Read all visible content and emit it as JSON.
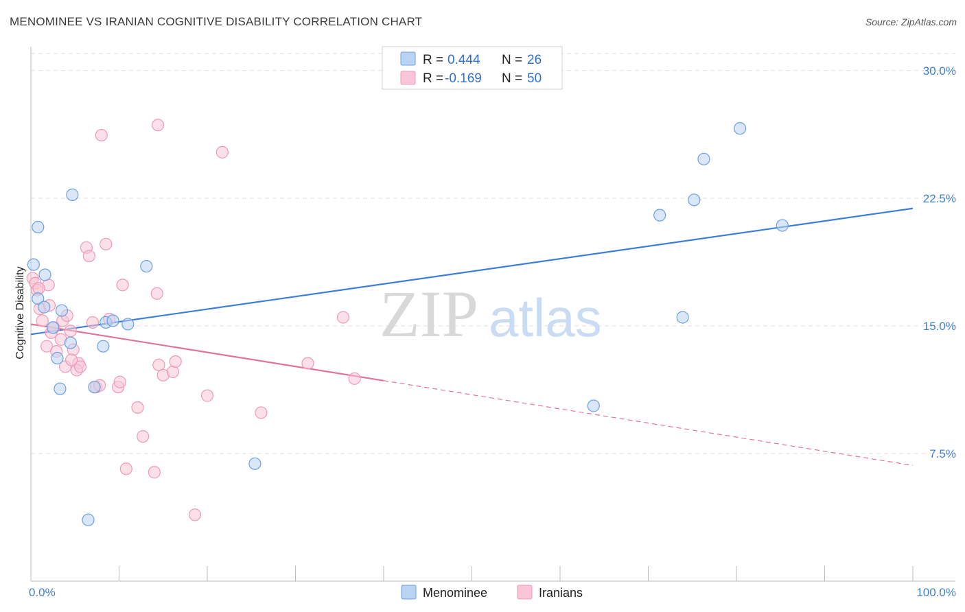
{
  "title": "MENOMINEE VS IRANIAN COGNITIVE DISABILITY CORRELATION CHART",
  "source": "Source: ZipAtlas.com",
  "watermark": {
    "zip": "ZIP",
    "atlas": "atlas"
  },
  "colors": {
    "blue": "#3b7dd8",
    "blue_fill": "#b9d3f2",
    "blue_stroke": "#6b9fe0",
    "pink": "#e0739a",
    "pink_fill": "#f8c6d6",
    "pink_stroke": "#ee9ab7",
    "grid": "#dddddd",
    "axis_text": "#3f7fd2"
  },
  "legend": {
    "rows": [
      {
        "r_label": "R =",
        "r_value": "0.444",
        "n_label": "N =",
        "n_value": "26",
        "series": "blue"
      },
      {
        "r_label": "R =",
        "r_value": "-0.169",
        "n_label": "N =",
        "n_value": "50",
        "series": "pink"
      }
    ]
  },
  "chart_data": {
    "type": "scatter",
    "title": "MENOMINEE VS IRANIAN COGNITIVE DISABILITY CORRELATION CHART",
    "xlabel": "",
    "ylabel": "Cognitive Disability",
    "xlim": [
      0,
      100
    ],
    "ylim": [
      0,
      31
    ],
    "x_tick_labels": [
      "0.0%",
      "100.0%"
    ],
    "y_ticks": [
      7.5,
      15.0,
      22.5,
      30.0
    ],
    "y_tick_labels": [
      "7.5%",
      "15.0%",
      "22.5%",
      "30.0%"
    ],
    "grid": true,
    "series": [
      {
        "name": "Menominee",
        "color": "blue",
        "r": 0.444,
        "n": 26,
        "trend": {
          "x0": 0,
          "y0": 14.5,
          "x1": 100,
          "y1": 21.9,
          "dashed_from": null
        },
        "points": [
          [
            0.3,
            18.6
          ],
          [
            0.8,
            20.8
          ],
          [
            1.6,
            18.0
          ],
          [
            0.8,
            16.6
          ],
          [
            1.5,
            16.1
          ],
          [
            3.5,
            15.9
          ],
          [
            2.5,
            14.9
          ],
          [
            4.5,
            14.0
          ],
          [
            3.0,
            13.1
          ],
          [
            8.2,
            13.8
          ],
          [
            3.3,
            11.3
          ],
          [
            7.2,
            11.4
          ],
          [
            4.7,
            22.7
          ],
          [
            13.1,
            18.5
          ],
          [
            8.5,
            15.2
          ],
          [
            9.3,
            15.3
          ],
          [
            11.0,
            15.1
          ],
          [
            25.4,
            6.9
          ],
          [
            6.5,
            3.6
          ],
          [
            63.8,
            10.3
          ],
          [
            71.3,
            21.5
          ],
          [
            73.9,
            15.5
          ],
          [
            75.2,
            22.4
          ],
          [
            76.3,
            24.8
          ],
          [
            80.4,
            26.6
          ],
          [
            85.2,
            20.9
          ]
        ]
      },
      {
        "name": "Iranians",
        "color": "pink",
        "r": -0.169,
        "n": 50,
        "trend": {
          "x0": 0,
          "y0": 15.1,
          "x1": 100,
          "y1": 6.8,
          "dashed_from": 40
        },
        "points": [
          [
            0.2,
            17.8
          ],
          [
            0.5,
            17.5
          ],
          [
            0.7,
            17.1
          ],
          [
            1.0,
            16.0
          ],
          [
            2.0,
            17.4
          ],
          [
            2.1,
            16.2
          ],
          [
            1.3,
            15.3
          ],
          [
            2.3,
            14.6
          ],
          [
            1.8,
            13.8
          ],
          [
            2.9,
            13.5
          ],
          [
            3.4,
            14.2
          ],
          [
            3.6,
            15.3
          ],
          [
            4.1,
            15.6
          ],
          [
            4.5,
            14.7
          ],
          [
            4.8,
            13.6
          ],
          [
            5.4,
            12.8
          ],
          [
            3.9,
            12.6
          ],
          [
            5.2,
            12.4
          ],
          [
            5.6,
            12.6
          ],
          [
            4.6,
            13.0
          ],
          [
            6.3,
            19.6
          ],
          [
            6.6,
            19.1
          ],
          [
            7.0,
            15.2
          ],
          [
            7.4,
            11.4
          ],
          [
            7.8,
            11.5
          ],
          [
            8.0,
            26.2
          ],
          [
            8.5,
            19.8
          ],
          [
            8.9,
            15.4
          ],
          [
            9.9,
            11.4
          ],
          [
            10.1,
            11.7
          ],
          [
            10.4,
            17.4
          ],
          [
            12.1,
            10.2
          ],
          [
            12.7,
            8.5
          ],
          [
            10.8,
            6.6
          ],
          [
            14.0,
            6.4
          ],
          [
            14.3,
            16.9
          ],
          [
            14.4,
            26.8
          ],
          [
            14.5,
            12.7
          ],
          [
            15.0,
            12.1
          ],
          [
            16.1,
            12.3
          ],
          [
            16.4,
            12.9
          ],
          [
            18.6,
            3.9
          ],
          [
            20.0,
            10.9
          ],
          [
            21.7,
            25.2
          ],
          [
            26.1,
            9.9
          ],
          [
            31.4,
            12.8
          ],
          [
            35.4,
            15.5
          ],
          [
            36.7,
            11.9
          ],
          [
            0.9,
            17.2
          ],
          [
            2.6,
            14.9
          ]
        ]
      }
    ]
  }
}
